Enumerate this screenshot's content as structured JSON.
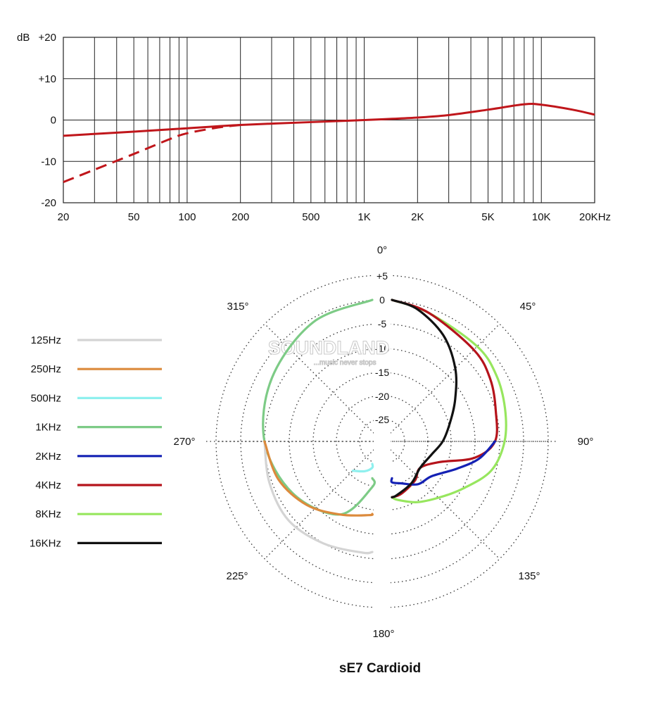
{
  "chart_data": [
    {
      "type": "line",
      "ylabel": "dB",
      "yticks": [
        "+20",
        "+10",
        "0",
        "-10",
        "-20"
      ],
      "ylim": [
        -20,
        20
      ],
      "xscale": "log",
      "xlim": [
        20,
        20000
      ],
      "xticks": [
        {
          "value": 20,
          "label": "20"
        },
        {
          "value": 50,
          "label": "50"
        },
        {
          "value": 100,
          "label": "100"
        },
        {
          "value": 200,
          "label": "200"
        },
        {
          "value": 500,
          "label": "500"
        },
        {
          "value": 1000,
          "label": "1K"
        },
        {
          "value": 2000,
          "label": "2K"
        },
        {
          "value": 5000,
          "label": "5K"
        },
        {
          "value": 10000,
          "label": "10K"
        },
        {
          "value": 20000,
          "label": "20KHz"
        }
      ],
      "grid": true,
      "series": [
        {
          "style": "solid",
          "color": "#c0161b",
          "x": [
            20,
            50,
            100,
            200,
            500,
            1000,
            2000,
            3000,
            5000,
            8000,
            10000,
            15000,
            20000
          ],
          "y": [
            -3.8,
            -2.8,
            -2,
            -1.2,
            -0.5,
            0,
            0.6,
            1.2,
            2.5,
            3.8,
            3.7,
            2.5,
            1.3
          ]
        },
        {
          "style": "dashed",
          "color": "#c0161b",
          "x": [
            20,
            30,
            50,
            80,
            100,
            150,
            200
          ],
          "y": [
            -15,
            -12,
            -8.2,
            -4.6,
            -3.2,
            -1.8,
            -1.2
          ]
        }
      ]
    },
    {
      "type": "polar",
      "title": "sE7  Cardioid",
      "angle_labels": [
        {
          "deg": 0,
          "label": "0°"
        },
        {
          "deg": 45,
          "label": "45°"
        },
        {
          "deg": 90,
          "label": "90°"
        },
        {
          "deg": 135,
          "label": "135°"
        },
        {
          "deg": 180,
          "label": "180°"
        },
        {
          "deg": 225,
          "label": "225°"
        },
        {
          "deg": 270,
          "label": "270°"
        },
        {
          "deg": 315,
          "label": "315°"
        }
      ],
      "rings": [
        "+5",
        "0",
        "-5",
        "-10",
        "-15",
        "-20",
        "-25"
      ],
      "rlim": [
        -30,
        5
      ],
      "grid": "dotted",
      "watermark": {
        "brand": "SOUNDLAND",
        "tagline": "...music never stops"
      },
      "legend": [
        {
          "label": "125Hz",
          "color": "#d4d4d4"
        },
        {
          "label": "250Hz",
          "color": "#dc8a3c"
        },
        {
          "label": "500Hz",
          "color": "#8ff0ee"
        },
        {
          "label": "1KHz",
          "color": "#7dcb86"
        },
        {
          "label": "2KHz",
          "color": "#1421b4"
        },
        {
          "label": "4KHz",
          "color": "#b5131b"
        },
        {
          "label": "8KHz",
          "color": "#97e65e"
        },
        {
          "label": "16KHz",
          "color": "#111111"
        }
      ],
      "series": [
        {
          "name": "1KHz",
          "color": "#7dcb86",
          "side": "left",
          "deg": [
            0,
            30,
            60,
            90,
            120,
            150,
            170,
            180
          ],
          "db": [
            0,
            -0.8,
            -3,
            -5,
            -8,
            -12,
            -20,
            -22
          ]
        },
        {
          "name": "125Hz",
          "color": "#d4d4d4",
          "side": "left",
          "deg": [
            90,
            110,
            130,
            150,
            170,
            180
          ],
          "db": [
            -5,
            -4.5,
            -4,
            -5,
            -6,
            -6.5
          ]
        },
        {
          "name": "250Hz",
          "color": "#dc8a3c",
          "side": "left",
          "deg": [
            90,
            110,
            130,
            150,
            170,
            180
          ],
          "db": [
            -5,
            -6.5,
            -9,
            -12,
            -14,
            -14.5
          ]
        },
        {
          "name": "500Hz",
          "color": "#8ff0ee",
          "side": "left",
          "deg": [
            135,
            150,
            165,
            180
          ],
          "db": [
            -21,
            -22.5,
            -24,
            -25
          ]
        },
        {
          "name": "8KHz",
          "color": "#97e65e",
          "side": "right",
          "deg": [
            0,
            20,
            45,
            60,
            75,
            90,
            105,
            120,
            135,
            150,
            165,
            180
          ],
          "db": [
            0,
            -1,
            -1.5,
            -2,
            -3,
            -4,
            -6,
            -10,
            -13,
            -15,
            -17,
            -18
          ]
        },
        {
          "name": "4KHz",
          "color": "#b5131b",
          "side": "right",
          "deg": [
            0,
            20,
            45,
            60,
            75,
            90,
            100,
            110,
            125,
            140,
            160,
            180
          ],
          "db": [
            0,
            -1,
            -2.5,
            -3.5,
            -5,
            -6,
            -10,
            -17,
            -20,
            -19,
            -18,
            -18
          ]
        },
        {
          "name": "2KHz",
          "color": "#1421b4",
          "side": "right",
          "deg": [
            90,
            100,
            110,
            125,
            140,
            155,
            170,
            180
          ],
          "db": [
            -6,
            -9,
            -13,
            -17,
            -18,
            -20,
            -21,
            -22
          ]
        },
        {
          "name": "16KHz",
          "color": "#111111",
          "side": "right",
          "deg": [
            0,
            15,
            30,
            45,
            60,
            75,
            90,
            105,
            125,
            145,
            165,
            180
          ],
          "db": [
            0,
            -1,
            -4,
            -8,
            -12,
            -15,
            -17,
            -19,
            -20,
            -19,
            -18,
            -18
          ]
        }
      ]
    }
  ]
}
